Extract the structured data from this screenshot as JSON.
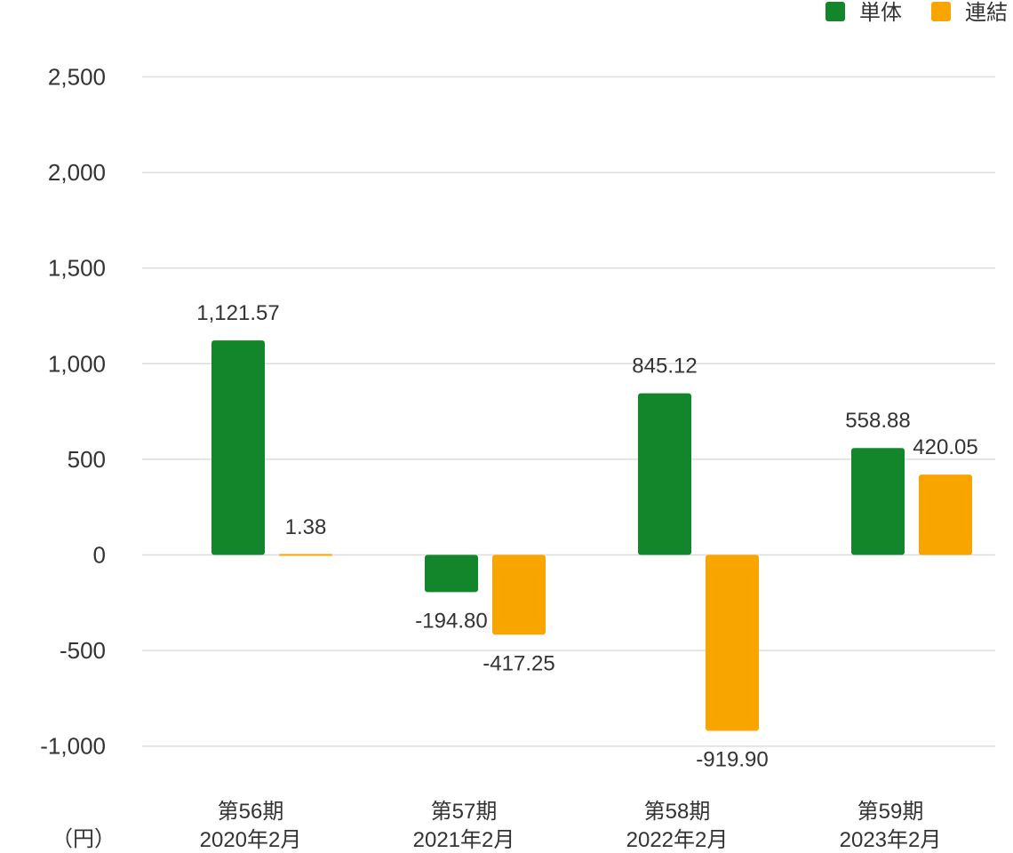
{
  "chart_data": {
    "type": "bar",
    "categories": [
      [
        "第56期",
        "2020年2月"
      ],
      [
        "第57期",
        "2021年2月"
      ],
      [
        "第58期",
        "2022年2月"
      ],
      [
        "第59期",
        "2023年2月"
      ]
    ],
    "series": [
      {
        "name": "単体",
        "color": "#13852a",
        "values": [
          1121.57,
          -194.8,
          845.12,
          558.88
        ],
        "labels": [
          "1,121.57",
          "-194.80",
          "845.12",
          "558.88"
        ]
      },
      {
        "name": "連結",
        "color": "#f9a500",
        "values": [
          1.38,
          -417.25,
          -919.9,
          420.05
        ],
        "labels": [
          "1.38",
          "-417.25",
          "-919.90",
          "420.05"
        ]
      }
    ],
    "yticks": [
      2500,
      2000,
      1500,
      1000,
      500,
      0,
      -500,
      -1000
    ],
    "ytick_labels": [
      "2,500",
      "2,000",
      "1,500",
      "1,000",
      "500",
      "0",
      "-500",
      "-1,000"
    ],
    "ylim": [
      -1000,
      2500
    ],
    "yunit": "（円）",
    "grid": true,
    "legend_position": "top-right",
    "title": "",
    "xlabel": "",
    "ylabel": ""
  }
}
